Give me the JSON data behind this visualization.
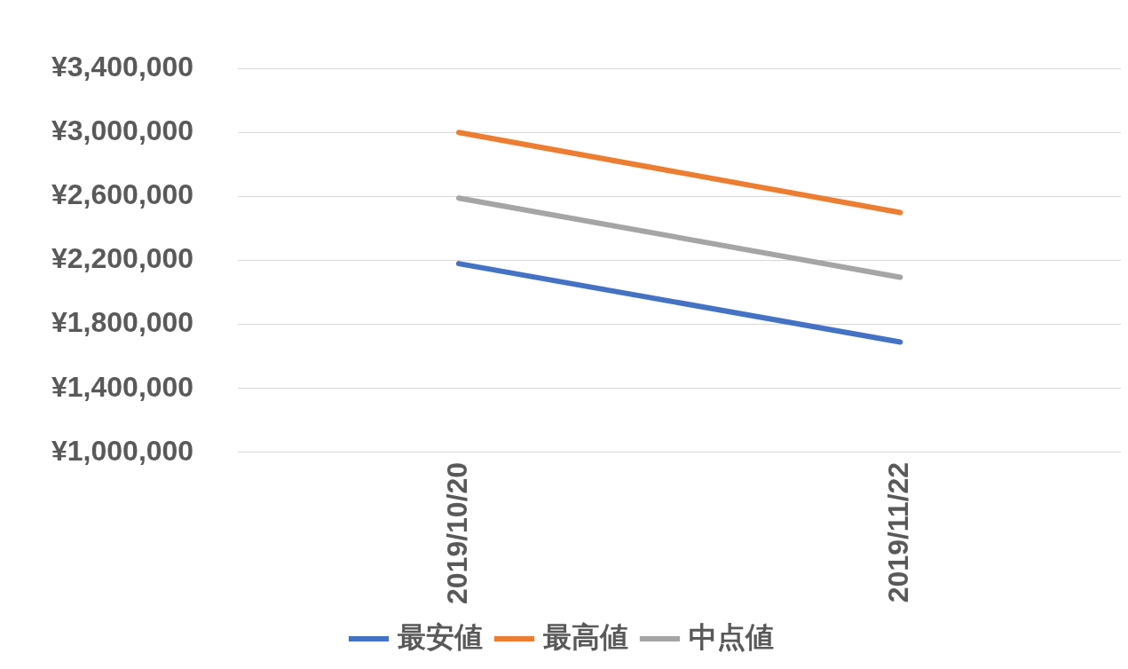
{
  "chart_data": {
    "type": "line",
    "categories": [
      "2019/10/20",
      "2019/11/22"
    ],
    "series": [
      {
        "name": "最安値",
        "color": "#4472c4",
        "values": [
          2180000,
          1690000
        ]
      },
      {
        "name": "最高値",
        "color": "#ed7d31",
        "values": [
          3000000,
          2500000
        ]
      },
      {
        "name": "中点値",
        "color": "#a5a5a5",
        "values": [
          2590000,
          2095000
        ]
      }
    ],
    "ylim": [
      1000000,
      3400000
    ],
    "yticks": [
      {
        "value": 1000000,
        "label": "¥1,000,000"
      },
      {
        "value": 1400000,
        "label": "¥1,400,000"
      },
      {
        "value": 1800000,
        "label": "¥1,800,000"
      },
      {
        "value": 2200000,
        "label": "¥2,200,000"
      },
      {
        "value": 2600000,
        "label": "¥2,600,000"
      },
      {
        "value": 3000000,
        "label": "¥3,000,000"
      },
      {
        "value": 3400000,
        "label": "¥3,400,000"
      }
    ],
    "grid": "y",
    "legend": "bottom",
    "marker": "none"
  }
}
